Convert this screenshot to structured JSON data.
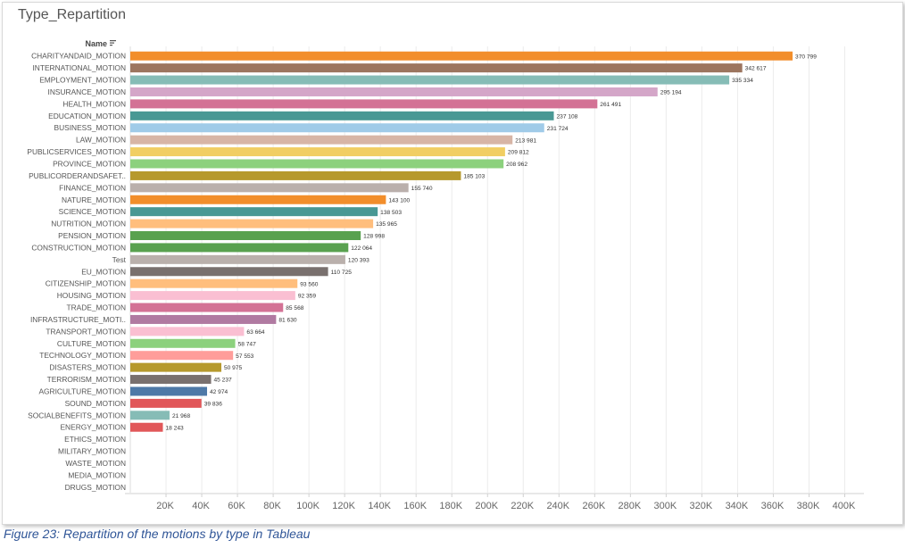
{
  "sheet_title": "Type_Repartition",
  "caption": "Figure 23: Repartition of the motions by type in Tableau",
  "chart_data": {
    "type": "bar",
    "orientation": "horizontal",
    "row_header": "Name",
    "sort_icon": "sort-descending-icon",
    "categories": [
      "CHARITYANDAID_MOTION",
      "INTERNATIONAL_MOTION",
      "EMPLOYMENT_MOTION",
      "INSURANCE_MOTION",
      "HEALTH_MOTION",
      "EDUCATION_MOTION",
      "BUSINESS_MOTION",
      "LAW_MOTION",
      "PUBLICSERVICES_MOTION",
      "PROVINCE_MOTION",
      "PUBLICORDERANDSAFET..",
      "FINANCE_MOTION",
      "NATURE_MOTION",
      "SCIENCE_MOTION",
      "NUTRITION_MOTION",
      "PENSION_MOTION",
      "CONSTRUCTION_MOTION",
      "Test",
      "EU_MOTION",
      "CITIZENSHIP_MOTION",
      "HOUSING_MOTION",
      "TRADE_MOTION",
      "INFRASTRUCTURE_MOTI..",
      "TRANSPORT_MOTION",
      "CULTURE_MOTION",
      "TECHNOLOGY_MOTION",
      "DISASTERS_MOTION",
      "TERRORISM_MOTION",
      "AGRICULTURE_MOTION",
      "SOUND_MOTION",
      "SOCIALBENEFITS_MOTION",
      "ENERGY_MOTION",
      "ETHICS_MOTION",
      "MILITARY_MOTION",
      "WASTE_MOTION",
      "MEDIA_MOTION",
      "DRUGS_MOTION"
    ],
    "values": [
      370799,
      342617,
      335334,
      295194,
      261491,
      237108,
      231724,
      213981,
      209812,
      208962,
      185103,
      155740,
      143100,
      138503,
      135965,
      128998,
      122064,
      120393,
      110725,
      93560,
      92359,
      85568,
      81630,
      63664,
      58747,
      57553,
      50975,
      45237,
      42974,
      39836,
      21968,
      18243,
      0,
      0,
      0,
      0,
      0
    ],
    "value_labels": [
      "370 799",
      "342 617",
      "335 334",
      "295 194",
      "261 491",
      "237 108",
      "231 724",
      "213 981",
      "209 812",
      "208 962",
      "185 103",
      "155 740",
      "143 100",
      "138 503",
      "135 965",
      "128 998",
      "122 064",
      "120 393",
      "110 725",
      "93 560",
      "92 359",
      "85 568",
      "81 630",
      "63 664",
      "58 747",
      "57 553",
      "50 975",
      "45 237",
      "42 974",
      "39 836",
      "21 968",
      "18 243",
      "",
      "",
      "",
      "",
      ""
    ],
    "colors": [
      "#f28e2b",
      "#9c755f",
      "#86bcb6",
      "#d4a6c8",
      "#d37295",
      "#499894",
      "#a0cbe8",
      "#d7b5a6",
      "#f1ce63",
      "#8cd17d",
      "#b6992d",
      "#bab0ac",
      "#f28e2b",
      "#499894",
      "#ffbe7d",
      "#59a14f",
      "#59a14f",
      "#bab0ac",
      "#79706e",
      "#ffbe7d",
      "#fabfd2",
      "#d37295",
      "#b07aa1",
      "#fabfd2",
      "#8cd17d",
      "#ff9d9a",
      "#b6992d",
      "#79706e",
      "#4e79a7",
      "#e15759",
      "#86bcb6",
      "#e15759",
      "#cccccc",
      "#cccccc",
      "#cccccc",
      "#cccccc",
      "#cccccc"
    ],
    "x_ticks": [
      20000,
      40000,
      60000,
      80000,
      100000,
      120000,
      140000,
      160000,
      180000,
      200000,
      220000,
      240000,
      260000,
      280000,
      300000,
      320000,
      340000,
      360000,
      380000,
      400000
    ],
    "x_tick_labels": [
      "20K",
      "40K",
      "60K",
      "80K",
      "100K",
      "120K",
      "140K",
      "160K",
      "180K",
      "200K",
      "220K",
      "240K",
      "260K",
      "280K",
      "300K",
      "320K",
      "340K",
      "360K",
      "380K",
      "400K"
    ],
    "xlim": [
      0,
      400000
    ],
    "grid": true,
    "xlabel": "",
    "ylabel": ""
  }
}
